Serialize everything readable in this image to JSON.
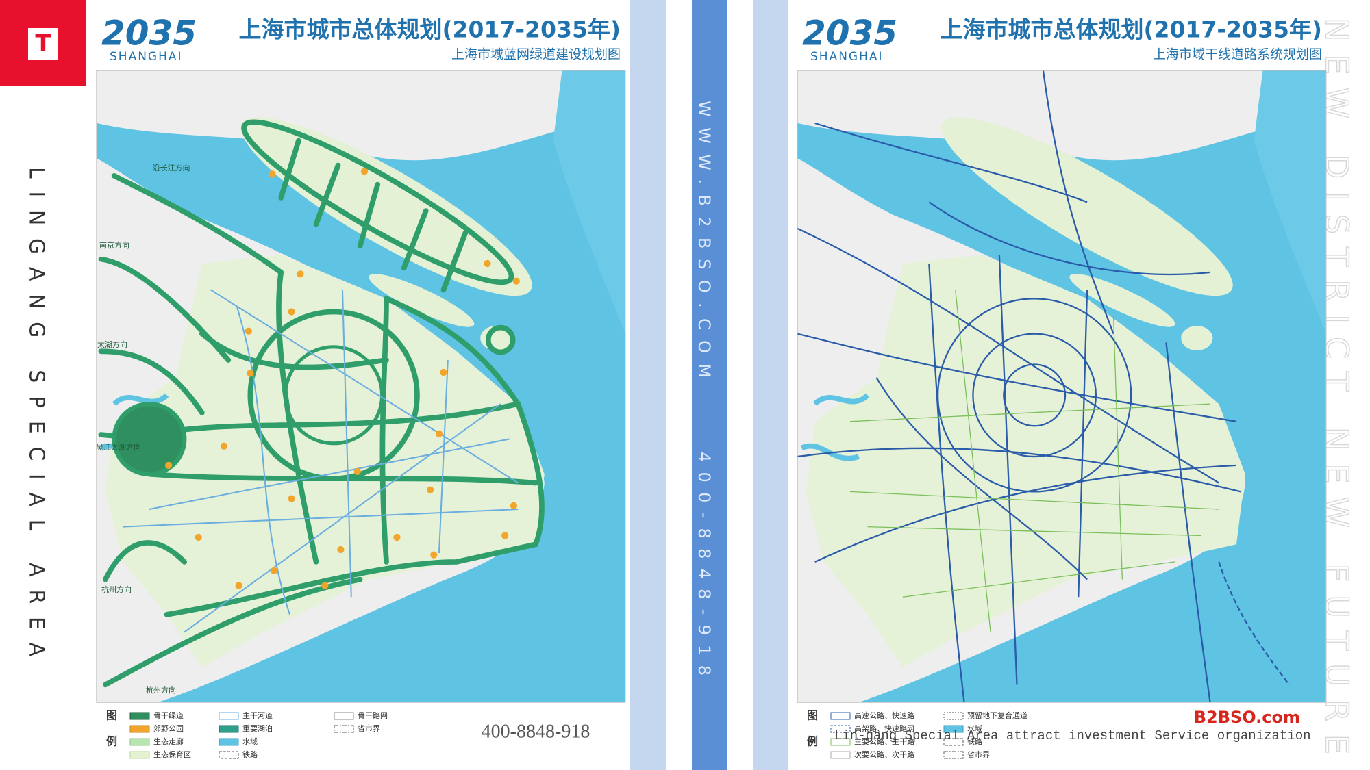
{
  "sidebar": {
    "logo": "T",
    "vertical_text": "LINGANG SPECIAL AREA"
  },
  "left_map": {
    "logo_year": "2035",
    "logo_city": "SHANGHAI",
    "title": "上海市城市总体规划(2017-2035年)",
    "subtitle": "上海市域蓝网绿道建设规划图",
    "direction_labels": [
      "沿长江方向",
      "南京方向",
      "太湖方向",
      "吴江太湖方向",
      "杭州方向",
      "杭州方向"
    ],
    "legend_heading": [
      "图",
      "例"
    ],
    "legend": [
      "骨干绿道",
      "郊野公园",
      "生态走廊",
      "生态保育区",
      "主干河道",
      "重要湖泊",
      "水域",
      "铁路",
      "骨干路网",
      "省市界"
    ],
    "phone": "400-8848-918"
  },
  "divider": {
    "website": "WWW.B2BSO.COM",
    "phone": "400-8848-918"
  },
  "right_map": {
    "logo_year": "2035",
    "logo_city": "SHANGHAI",
    "title": "上海市城市总体规划(2017-2035年)",
    "subtitle": "上海市域干线道路系统规划图",
    "legend_heading": [
      "图",
      "例"
    ],
    "legend": [
      "高速公路、快速路",
      "高架路、快速路网",
      "主要公路、主干路",
      "次要公路、次干路",
      "预留地下复合通道",
      "水域",
      "铁路",
      "省市界"
    ],
    "brand": "B2BSO.com",
    "watermark": "Lin-gang Special Area attract investment Service organization"
  },
  "right_vertical_text": "NEW DISTRICT NEW FUTURE"
}
